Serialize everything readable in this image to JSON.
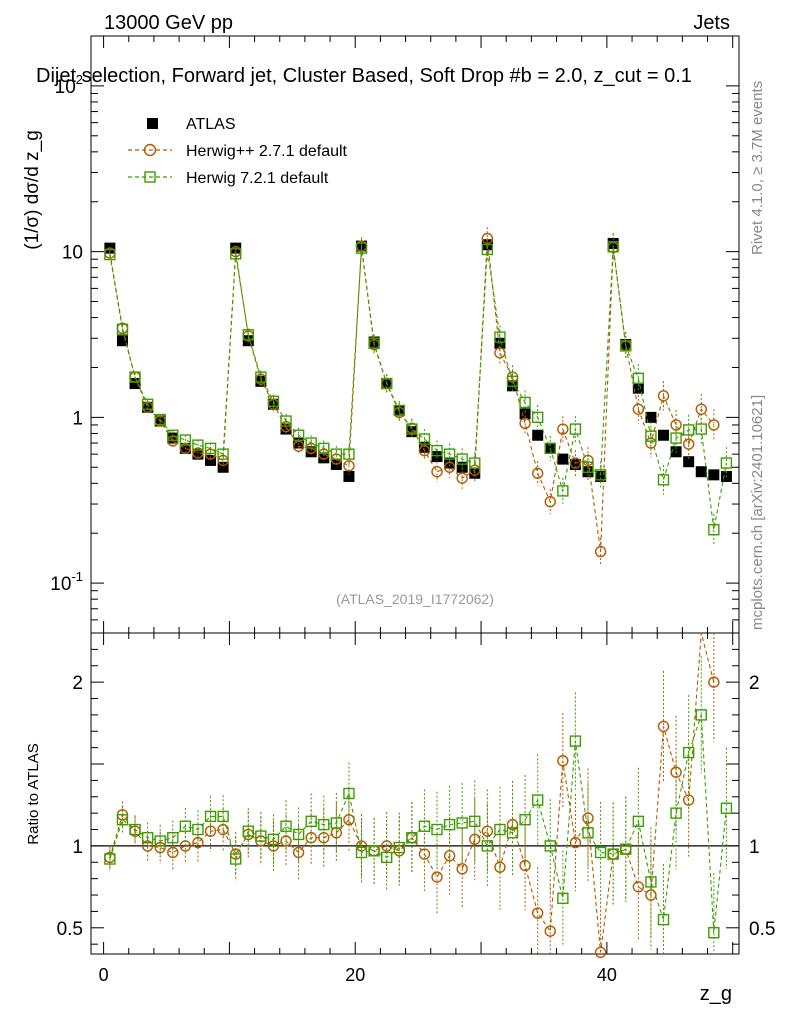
{
  "header": {
    "energy_label": "13000 GeV pp",
    "category_label": "Jets",
    "selection_title": "Dijet selection, Forward jet, Cluster Based, Soft Drop #b = 2.0, z_cut = 0.1",
    "analysis_id": "(ATLAS_2019_I1772062)",
    "rivet_label": "Rivet 4.1.0, ≥ 3.7M events",
    "mcplots_label": "mcplots.cern.ch [arXiv:2401.10621]"
  },
  "axes": {
    "main_ylabel": "(1/σ) dσ/d z_g",
    "ratio_ylabel": "Ratio to ATLAS",
    "xlabel": "z_g"
  },
  "colors": {
    "atlas": "#000000",
    "herwig_pp": "#b35900",
    "herwig7": "#3a9e00",
    "reference_line": "#000000"
  },
  "chart_data": {
    "type": "scatter",
    "title": "Dijet selection, Forward jet, Cluster Based, Soft Drop #b = 2.0, z_cut = 0.1",
    "xlabel": "z_g",
    "ylabel": "(1/σ) dσ/d z_g",
    "xlim": [
      -1,
      50.5
    ],
    "ylim": [
      0.05,
      200
    ],
    "yscale": "log",
    "ratio_ylim": [
      0.34,
      2.3
    ],
    "ratio_ylabel": "Ratio to ATLAS",
    "x_ticks": [
      0,
      20,
      40
    ],
    "y_ticks": [
      0.1,
      1,
      10,
      100
    ],
    "y_tick_labels": [
      "10^-1",
      "1",
      "10",
      "10^2"
    ],
    "ratio_ticks": [
      0.5,
      1,
      2
    ],
    "legend_position": "top-left",
    "series": [
      {
        "name": "ATLAS",
        "marker": "filled-square",
        "x": [
          0.5,
          1.5,
          2.5,
          3.5,
          4.5,
          5.5,
          6.5,
          7.5,
          8.5,
          9.5,
          10.5,
          11.5,
          12.5,
          13.5,
          14.5,
          15.5,
          16.5,
          17.5,
          18.5,
          19.5,
          20.5,
          21.5,
          22.5,
          23.5,
          24.5,
          25.5,
          26.5,
          27.5,
          28.5,
          29.5,
          30.5,
          31.5,
          32.5,
          33.5,
          34.5,
          35.5,
          36.5,
          37.5,
          38.5,
          39.5,
          40.5,
          41.5,
          42.5,
          43.5,
          44.5,
          45.5,
          46.5,
          47.5,
          48.5,
          49.5
        ],
        "y": [
          10.5,
          2.9,
          1.6,
          1.15,
          0.95,
          0.75,
          0.65,
          0.6,
          0.55,
          0.5,
          10.5,
          2.9,
          1.65,
          1.2,
          0.85,
          0.7,
          0.62,
          0.57,
          0.52,
          0.44,
          10.8,
          2.85,
          1.6,
          1.1,
          0.82,
          0.66,
          0.58,
          0.53,
          0.5,
          0.46,
          11.0,
          2.8,
          1.55,
          1.05,
          0.78,
          0.65,
          0.56,
          0.52,
          0.47,
          0.44,
          11.2,
          2.75,
          1.5,
          1.0,
          0.78,
          0.62,
          0.54,
          0.47,
          0.45,
          0.44
        ]
      },
      {
        "name": "Herwig++ 2.7.1 default",
        "marker": "open-circle",
        "x": [
          0.5,
          1.5,
          2.5,
          3.5,
          4.5,
          5.5,
          6.5,
          7.5,
          8.5,
          9.5,
          10.5,
          11.5,
          12.5,
          13.5,
          14.5,
          15.5,
          16.5,
          17.5,
          18.5,
          19.5,
          20.5,
          21.5,
          22.5,
          23.5,
          24.5,
          25.5,
          26.5,
          27.5,
          28.5,
          29.5,
          30.5,
          31.5,
          32.5,
          33.5,
          34.5,
          35.5,
          36.5,
          37.5,
          38.5,
          39.5,
          40.5,
          41.5,
          42.5,
          43.5,
          44.5,
          45.5,
          46.5,
          47.5,
          48.5,
          49.5
        ],
        "y": [
          9.8,
          3.45,
          1.75,
          1.15,
          0.95,
          0.72,
          0.65,
          0.61,
          0.6,
          0.55,
          10.0,
          3.1,
          1.7,
          1.2,
          0.88,
          0.67,
          0.65,
          0.6,
          0.56,
          0.51,
          10.8,
          2.75,
          1.6,
          1.07,
          0.86,
          0.63,
          0.47,
          0.5,
          0.43,
          0.48,
          12.0,
          2.45,
          1.75,
          0.92,
          0.46,
          0.31,
          0.85,
          0.53,
          0.55,
          0.155,
          10.6,
          2.7,
          1.12,
          0.7,
          1.35,
          0.9,
          0.69,
          1.12,
          0.9,
          null
        ],
        "ratio": [
          0.93,
          1.19,
          1.09,
          1.0,
          0.99,
          0.96,
          1.0,
          1.02,
          1.09,
          1.1,
          0.95,
          1.07,
          1.03,
          1.0,
          1.03,
          0.96,
          1.05,
          1.05,
          1.08,
          1.16,
          1.0,
          0.97,
          1.0,
          0.97,
          1.05,
          0.95,
          0.81,
          0.94,
          0.86,
          1.04,
          1.09,
          0.87,
          1.13,
          0.88,
          0.59,
          0.48,
          1.52,
          1.02,
          1.17,
          0.35,
          0.95,
          0.98,
          0.75,
          0.7,
          1.73,
          1.45,
          1.28,
          2.38,
          2.0,
          null
        ]
      },
      {
        "name": "Herwig 7.2.1 default",
        "marker": "open-square",
        "x": [
          0.5,
          1.5,
          2.5,
          3.5,
          4.5,
          5.5,
          6.5,
          7.5,
          8.5,
          9.5,
          10.5,
          11.5,
          12.5,
          13.5,
          14.5,
          15.5,
          16.5,
          17.5,
          18.5,
          19.5,
          20.5,
          21.5,
          22.5,
          23.5,
          24.5,
          25.5,
          26.5,
          27.5,
          28.5,
          29.5,
          30.5,
          31.5,
          32.5,
          33.5,
          34.5,
          35.5,
          36.5,
          37.5,
          38.5,
          39.5,
          40.5,
          41.5,
          42.5,
          43.5,
          44.5,
          45.5,
          46.5,
          47.5,
          48.5,
          49.5
        ],
        "y": [
          9.6,
          3.4,
          1.75,
          1.2,
          0.97,
          0.78,
          0.73,
          0.68,
          0.65,
          0.6,
          9.7,
          3.15,
          1.75,
          1.25,
          0.95,
          0.78,
          0.7,
          0.65,
          0.6,
          0.6,
          10.5,
          2.8,
          1.6,
          1.1,
          0.85,
          0.74,
          0.63,
          0.6,
          0.56,
          0.53,
          10.3,
          3.05,
          1.65,
          1.23,
          1.0,
          0.65,
          0.36,
          0.85,
          0.5,
          0.45,
          10.7,
          2.7,
          1.72,
          0.77,
          0.42,
          0.75,
          0.84,
          0.85,
          0.21,
          0.53
        ],
        "ratio": [
          0.92,
          1.16,
          1.1,
          1.05,
          1.03,
          1.05,
          1.12,
          1.1,
          1.18,
          1.18,
          0.92,
          1.09,
          1.06,
          1.04,
          1.12,
          1.07,
          1.15,
          1.13,
          1.14,
          1.32,
          0.96,
          0.97,
          0.93,
          0.99,
          1.05,
          1.12,
          1.1,
          1.13,
          1.14,
          1.15,
          1.0,
          1.1,
          1.08,
          1.16,
          1.28,
          1.0,
          0.68,
          1.64,
          1.08,
          0.96,
          0.95,
          0.98,
          1.15,
          0.78,
          0.55,
          1.2,
          1.57,
          1.8,
          0.47,
          1.23
        ]
      }
    ]
  }
}
